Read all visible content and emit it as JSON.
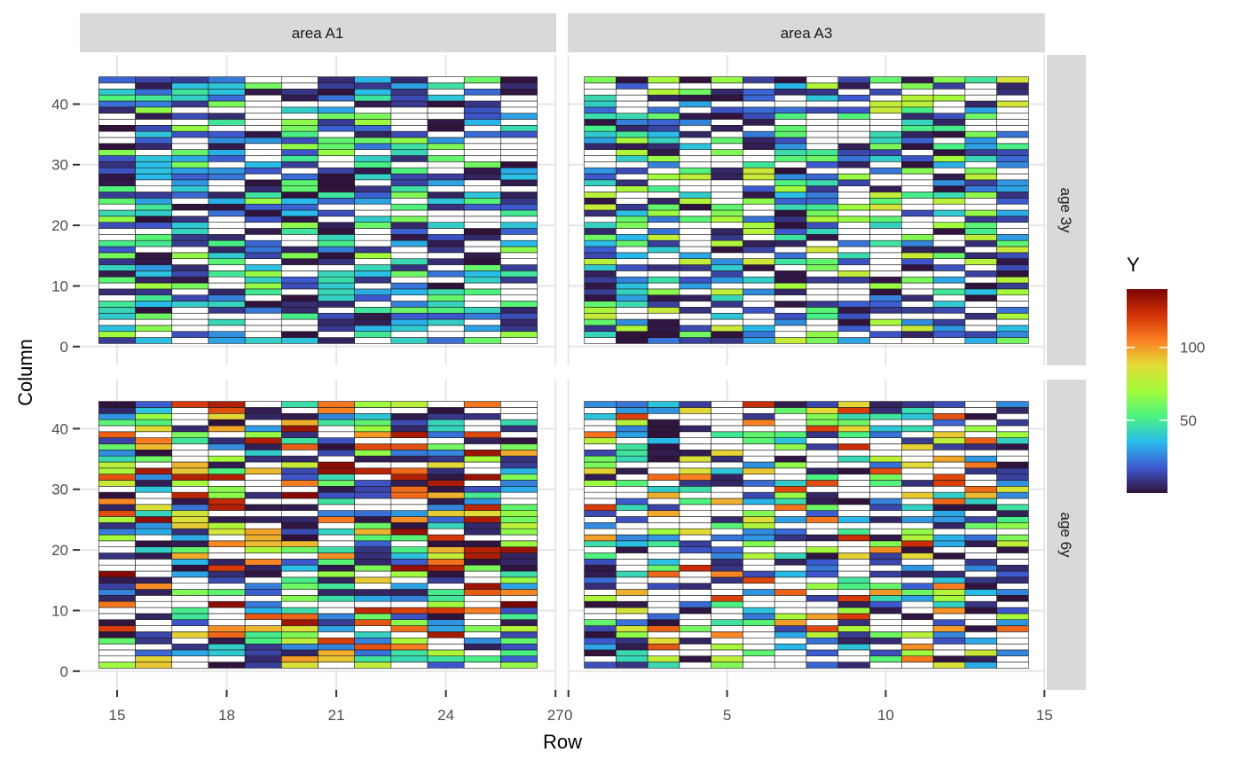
{
  "chart_data": {
    "type": "heatmap",
    "title": "",
    "xlabel": "Row",
    "ylabel": "Column",
    "legend": {
      "title": "Y",
      "ticks": [
        50,
        100
      ],
      "range": [
        0,
        140
      ],
      "colors": [
        "#30123b",
        "#3e58cf",
        "#28bbec",
        "#4af280",
        "#a2fc3c",
        "#e1dd37",
        "#fb8022",
        "#d23105",
        "#7a0403"
      ],
      "position": "right"
    },
    "column_facets": [
      "area A1",
      "area A3"
    ],
    "row_facets": [
      "age 3y",
      "age 6y"
    ],
    "y_axis": {
      "range": [
        0,
        45
      ],
      "ticks": [
        0,
        10,
        20,
        30,
        40
      ],
      "tick_labels": [
        "0",
        "10",
        "20",
        "30",
        "40"
      ]
    },
    "panels": [
      {
        "area": "area A1",
        "age": "age 3y",
        "x_range": [
          14.5,
          26.5
        ],
        "x_ticks": [
          15,
          18,
          21,
          24,
          27
        ],
        "rows": [
          15,
          16,
          17,
          18,
          19,
          20,
          21,
          22,
          23,
          24,
          25,
          26
        ],
        "columns_range": [
          1,
          44
        ],
        "max_value": 70,
        "white_fraction": 0.3
      },
      {
        "area": "area A3",
        "age": "age 3y",
        "x_range": [
          0.5,
          14.5
        ],
        "x_ticks": [
          0,
          5,
          10,
          15
        ],
        "rows": [
          1,
          2,
          3,
          4,
          5,
          6,
          7,
          8,
          9,
          10,
          11,
          12,
          13,
          14
        ],
        "columns_range": [
          1,
          44
        ],
        "max_value": 85,
        "white_fraction": 0.35
      },
      {
        "area": "area A1",
        "age": "age 6y",
        "x_range": [
          14.5,
          26.5
        ],
        "x_ticks": [
          15,
          18,
          21,
          24,
          27
        ],
        "rows": [
          15,
          16,
          17,
          18,
          19,
          20,
          21,
          22,
          23,
          24,
          25,
          26
        ],
        "columns_range": [
          1,
          44
        ],
        "max_value": 140,
        "white_fraction": 0.3
      },
      {
        "area": "area A3",
        "age": "age 6y",
        "x_range": [
          0.5,
          14.5
        ],
        "x_ticks": [
          0,
          5,
          10,
          15
        ],
        "rows": [
          1,
          2,
          3,
          4,
          5,
          6,
          7,
          8,
          9,
          10,
          11,
          12,
          13,
          14
        ],
        "columns_range": [
          1,
          44
        ],
        "max_value": 125,
        "white_fraction": 0.4
      }
    ],
    "grid": true,
    "x_ticks_area_A1": [
      "15",
      "18",
      "21",
      "24",
      "27"
    ],
    "x_ticks_area_A3": [
      "0",
      "5",
      "10",
      "15"
    ]
  }
}
